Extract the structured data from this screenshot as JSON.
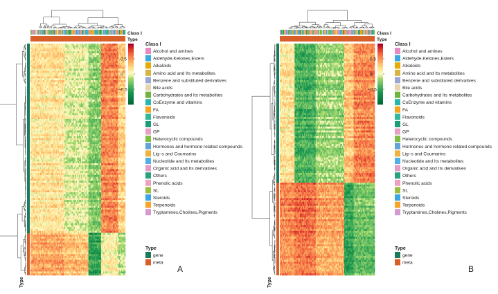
{
  "chart_data": [
    {
      "type": "heatmap",
      "panel_label": "A",
      "annotation_labels": {
        "class": "Class I",
        "type": "Type"
      },
      "row_axis_label": "Type",
      "colorbar": {
        "ticks": [
          0.5,
          0,
          -0.5
        ],
        "tick_labels": [
          "0.5",
          "0",
          "−0.5"
        ],
        "range": [
          -1,
          1
        ]
      },
      "row_blocks": [
        {
          "type": "gene",
          "fraction": 0.82
        },
        {
          "type": "meta",
          "fraction": 0.18
        }
      ],
      "col_blocks": [
        {
          "fraction": 0.36,
          "gene_value": 0.15,
          "meta_value": 0.4
        },
        {
          "fraction": 0.25,
          "gene_value": -0.05,
          "meta_value": 0.3
        },
        {
          "fraction": 0.13,
          "gene_value": -0.25,
          "meta_value": -0.55
        },
        {
          "fraction": 0.18,
          "gene_value": 0.55,
          "meta_value": 0.05
        },
        {
          "fraction": 0.08,
          "gene_value": 0.25,
          "meta_value": -0.15
        }
      ],
      "legend_class_title": "Class I",
      "legend_class": [
        {
          "label": "Alcohol and amines",
          "color": "#e78ac3"
        },
        {
          "label": "Aldehyde,Ketones,Esters",
          "color": "#39a9e0"
        },
        {
          "label": "Alkaloids",
          "color": "#e6ab02"
        },
        {
          "label": "Amino acid and Its metabolites",
          "color": "#d9b440"
        },
        {
          "label": "Benzene and substituted derivatives",
          "color": "#9aa7d4"
        },
        {
          "label": "Bile acids",
          "color": "#e7d4b0"
        },
        {
          "label": "Carbohydrates and Its metabolites",
          "color": "#6fb43e"
        },
        {
          "label": "CoEnzyme and vitamins",
          "color": "#27b7ad"
        },
        {
          "label": "FA",
          "color": "#f8a31b"
        },
        {
          "label": "Flavonoids",
          "color": "#33b89a"
        },
        {
          "label": "GL",
          "color": "#1b9e77"
        },
        {
          "label": "GP",
          "color": "#e7a0c4"
        },
        {
          "label": "Heterocyclic compounds",
          "color": "#7cbd42"
        },
        {
          "label": "Hormones and hormone related compounds",
          "color": "#62a3d9"
        },
        {
          "label": "Lig–s and Coumarins",
          "color": "#f0b23c"
        },
        {
          "label": "Nucleotide and Its metabolites",
          "color": "#4fb0e6"
        },
        {
          "label": "Organic acid and Its derivatives",
          "color": "#e69bc6"
        },
        {
          "label": "Others",
          "color": "#28a27a"
        },
        {
          "label": "Phenolic acids",
          "color": "#f0a0c0"
        },
        {
          "label": "SL",
          "color": "#9bbf3a"
        },
        {
          "label": "Steroids",
          "color": "#3aa6e3"
        },
        {
          "label": "Terpenoids",
          "color": "#f6a52b"
        },
        {
          "label": "Tryptamines,Cholines,Pigments",
          "color": "#d49ad0"
        }
      ],
      "legend_type_title": "Type",
      "legend_type": [
        {
          "label": "gene",
          "color": "#1a7a5e"
        },
        {
          "label": "meta",
          "color": "#d95f28"
        }
      ]
    },
    {
      "type": "heatmap",
      "panel_label": "B",
      "annotation_labels": {
        "class": "Class I",
        "type": "Type"
      },
      "row_axis_label": "Type",
      "colorbar": {
        "ticks": [
          0.5,
          0,
          -0.5
        ],
        "tick_labels": [
          "0.5",
          "0",
          "−0.5"
        ],
        "range": [
          -1,
          1
        ]
      },
      "row_blocks": [
        {
          "type": "gene",
          "fraction": 0.6
        },
        {
          "type": "meta",
          "fraction": 0.4
        }
      ],
      "col_blocks": [
        {
          "fraction": 0.16,
          "gene_value": 0.15,
          "meta_value": 0.55
        },
        {
          "fraction": 0.22,
          "gene_value": -0.45,
          "meta_value": 0.65
        },
        {
          "fraction": 0.3,
          "gene_value": -0.2,
          "meta_value": 0.45
        },
        {
          "fraction": 0.1,
          "gene_value": 0.3,
          "meta_value": -0.5
        },
        {
          "fraction": 0.22,
          "gene_value": 0.55,
          "meta_value": -0.3
        }
      ],
      "legend_class_title": "Class I",
      "legend_class": [
        {
          "label": "Alcohol and amines",
          "color": "#e78ac3"
        },
        {
          "label": "Aldehyde,Ketones,Esters",
          "color": "#39a9e0"
        },
        {
          "label": "Alkaloids",
          "color": "#e6ab02"
        },
        {
          "label": "Amino acid and Its metabolites",
          "color": "#d9b440"
        },
        {
          "label": "Benzene and substituted derivatives",
          "color": "#9aa7d4"
        },
        {
          "label": "Bile acids",
          "color": "#e7d4b0"
        },
        {
          "label": "Carbohydrates and Its metabolites",
          "color": "#6fb43e"
        },
        {
          "label": "CoEnzyme and vitamins",
          "color": "#27b7ad"
        },
        {
          "label": "FA",
          "color": "#f8a31b"
        },
        {
          "label": "Flavonoids",
          "color": "#33b89a"
        },
        {
          "label": "GL",
          "color": "#1b9e77"
        },
        {
          "label": "GP",
          "color": "#e7a0c4"
        },
        {
          "label": "Heterocyclic compounds",
          "color": "#7cbd42"
        },
        {
          "label": "Hormones and hormone related compounds",
          "color": "#62a3d9"
        },
        {
          "label": "Lig–s and Coumarins",
          "color": "#f0b23c"
        },
        {
          "label": "Nucleotide and Its metabolites",
          "color": "#4fb0e6"
        },
        {
          "label": "Organic acid and Its derivatives",
          "color": "#e69bc6"
        },
        {
          "label": "Others",
          "color": "#28a27a"
        },
        {
          "label": "Phenolic acids",
          "color": "#f0a0c0"
        },
        {
          "label": "SL",
          "color": "#9bbf3a"
        },
        {
          "label": "Steroids",
          "color": "#3aa6e3"
        },
        {
          "label": "Terpenoids",
          "color": "#f6a52b"
        },
        {
          "label": "Tryptamines,Cholines,Pigments",
          "color": "#d49ad0"
        }
      ],
      "legend_type_title": "Type",
      "legend_type": [
        {
          "label": "gene",
          "color": "#1a7a5e"
        },
        {
          "label": "meta",
          "color": "#d95f28"
        }
      ]
    }
  ]
}
